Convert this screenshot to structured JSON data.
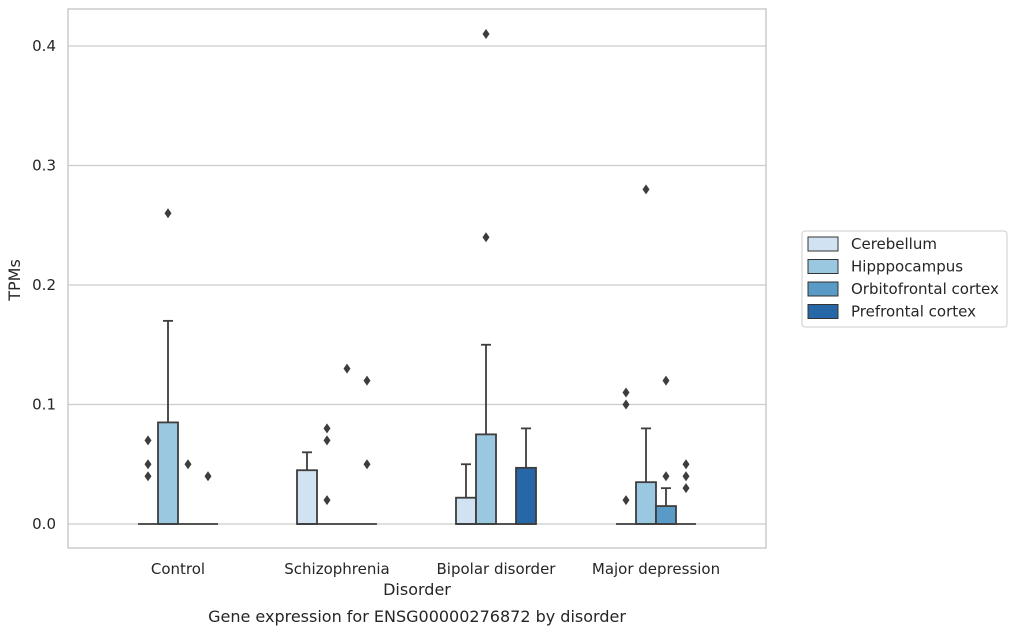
{
  "chart_data": {
    "type": "boxplot",
    "title": "",
    "caption": "Gene expression for ENSG00000276872 by disorder",
    "xlabel": "Disorder",
    "ylabel": "TPMs",
    "ylim": [
      -0.02,
      0.431
    ],
    "yticks": [
      0.0,
      0.1,
      0.2,
      0.3,
      0.4
    ],
    "ytick_labels": [
      "0.0",
      "0.1",
      "0.2",
      "0.3",
      "0.4"
    ],
    "grid": "horizontal",
    "legend_position": "right",
    "categories": [
      "Control",
      "Schizophrenia",
      "Bipolar disorder",
      "Major depression"
    ],
    "series": [
      {
        "name": "Cerebellum",
        "color": "#d1e2f2",
        "boxes": [
          {
            "q1": 0.0,
            "median": 0.0,
            "q3": 0.0,
            "whislo": 0.0,
            "whishi": 0.0,
            "fliers": [
              0.07,
              0.05,
              0.04
            ]
          },
          {
            "q1": 0.0,
            "median": 0.0,
            "q3": 0.045,
            "whislo": 0.0,
            "whishi": 0.06,
            "fliers": []
          },
          {
            "q1": 0.0,
            "median": 0.0,
            "q3": 0.022,
            "whislo": 0.0,
            "whishi": 0.05,
            "fliers": []
          },
          {
            "q1": 0.0,
            "median": 0.0,
            "q3": 0.0,
            "whislo": 0.0,
            "whishi": 0.0,
            "fliers": [
              0.11,
              0.1,
              0.02
            ]
          }
        ]
      },
      {
        "name": "Hipppocampus",
        "color": "#9ac8e0",
        "boxes": [
          {
            "q1": 0.0,
            "median": 0.0,
            "q3": 0.085,
            "whislo": 0.0,
            "whishi": 0.17,
            "fliers": [
              0.26
            ]
          },
          {
            "q1": 0.0,
            "median": 0.0,
            "q3": 0.0,
            "whislo": 0.0,
            "whishi": 0.0,
            "fliers": [
              0.08,
              0.07,
              0.02
            ]
          },
          {
            "q1": 0.0,
            "median": 0.0,
            "q3": 0.075,
            "whislo": 0.0,
            "whishi": 0.15,
            "fliers": [
              0.41,
              0.24
            ]
          },
          {
            "q1": 0.0,
            "median": 0.0,
            "q3": 0.035,
            "whislo": 0.0,
            "whishi": 0.08,
            "fliers": [
              0.28
            ]
          }
        ]
      },
      {
        "name": "Orbitofrontal cortex",
        "color": "#5a9ac6",
        "boxes": [
          {
            "q1": 0.0,
            "median": 0.0,
            "q3": 0.0,
            "whislo": 0.0,
            "whishi": 0.0,
            "fliers": [
              0.05
            ]
          },
          {
            "q1": 0.0,
            "median": 0.0,
            "q3": 0.0,
            "whislo": 0.0,
            "whishi": 0.0,
            "fliers": [
              0.13
            ]
          },
          {
            "q1": 0.0,
            "median": 0.0,
            "q3": 0.0,
            "whislo": 0.0,
            "whishi": 0.0,
            "fliers": []
          },
          {
            "q1": 0.0,
            "median": 0.0,
            "q3": 0.015,
            "whislo": 0.0,
            "whishi": 0.03,
            "fliers": [
              0.12,
              0.04
            ]
          }
        ]
      },
      {
        "name": "Prefrontal cortex",
        "color": "#2767a8",
        "boxes": [
          {
            "q1": 0.0,
            "median": 0.0,
            "q3": 0.0,
            "whislo": 0.0,
            "whishi": 0.0,
            "fliers": [
              0.04
            ]
          },
          {
            "q1": 0.0,
            "median": 0.0,
            "q3": 0.0,
            "whislo": 0.0,
            "whishi": 0.0,
            "fliers": [
              0.12,
              0.05
            ]
          },
          {
            "q1": 0.0,
            "median": 0.0,
            "q3": 0.047,
            "whislo": 0.0,
            "whishi": 0.08,
            "fliers": []
          },
          {
            "q1": 0.0,
            "median": 0.0,
            "q3": 0.0,
            "whislo": 0.0,
            "whishi": 0.0,
            "fliers": [
              0.05,
              0.04,
              0.03
            ]
          }
        ]
      }
    ]
  }
}
